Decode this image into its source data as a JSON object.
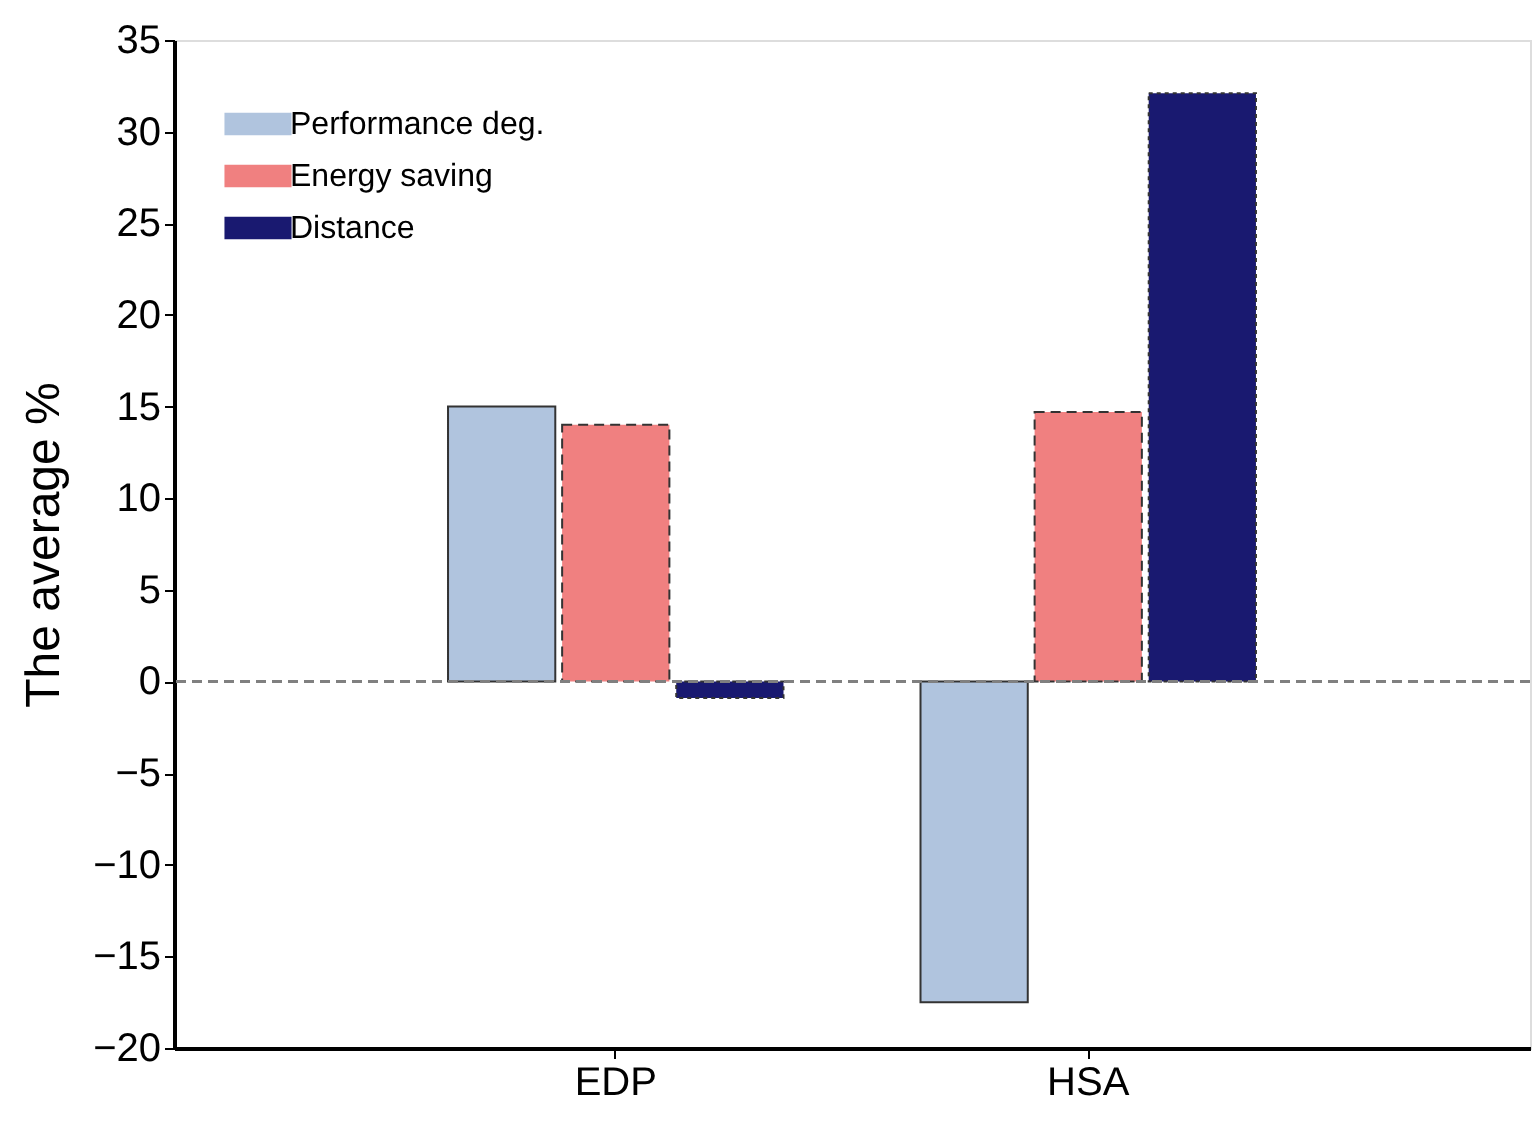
{
  "chart_data": {
    "type": "bar",
    "ylabel": "The average %",
    "categories": [
      "EDP",
      "HSA"
    ],
    "series": [
      {
        "name": "Performance deg.",
        "color": "#b0c4de",
        "line_style": "solid",
        "values": [
          15,
          -17.5
        ]
      },
      {
        "name": "Energy saving",
        "color": "#f08080",
        "line_style": "dashed",
        "values": [
          14,
          14.7
        ]
      },
      {
        "name": "Distance",
        "color": "#191970",
        "line_style": "dotted",
        "values": [
          -0.9,
          32.1
        ]
      }
    ],
    "ylim": [
      -20,
      35
    ],
    "yticks": [
      -20,
      -15,
      -10,
      -5,
      0,
      5,
      10,
      15,
      20,
      25,
      30,
      35
    ],
    "ref_lines": [
      {
        "axis": "y",
        "value": 0,
        "color": "#808080",
        "line_style": "dashed"
      }
    ],
    "grid": false,
    "legend": "top left"
  }
}
